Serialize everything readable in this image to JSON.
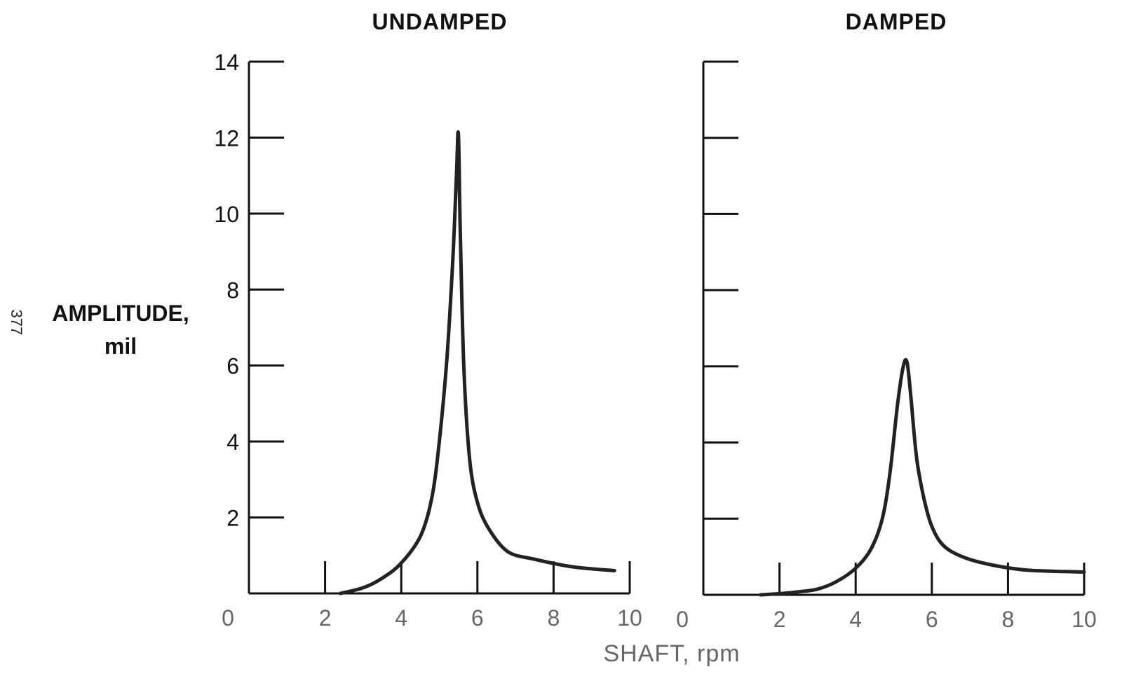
{
  "page_number": "377",
  "ylabel_lines": [
    "AMPLITUDE,",
    "mil"
  ],
  "xlabel": "SHAFT, rpm",
  "chart_data": [
    {
      "type": "line",
      "title": "UNDAMPED",
      "xlabel": "SHAFT, rpm",
      "ylabel": "AMPLITUDE, mil",
      "xlim": [
        0,
        10
      ],
      "ylim": [
        0,
        14
      ],
      "xticks": [
        0,
        2,
        4,
        6,
        8,
        10
      ],
      "yticks": [
        2,
        4,
        6,
        8,
        10,
        12,
        14
      ],
      "grid": false,
      "series": [
        {
          "x": [
            2.4,
            3.0,
            3.5,
            4.0,
            4.5,
            4.8,
            5.0,
            5.2,
            5.35,
            5.45,
            5.5,
            5.55,
            5.65,
            5.8,
            6.0,
            6.3,
            6.8,
            7.5,
            8.5,
            9.6
          ],
          "y": [
            0.0,
            0.15,
            0.4,
            0.8,
            1.5,
            2.5,
            4.0,
            6.2,
            8.7,
            11.0,
            12.1,
            9.5,
            5.8,
            3.5,
            2.4,
            1.7,
            1.1,
            0.9,
            0.7,
            0.6
          ]
        }
      ]
    },
    {
      "type": "line",
      "title": "DAMPED",
      "xlabel": "SHAFT, rpm",
      "ylabel": "AMPLITUDE, mil",
      "xlim": [
        0,
        10
      ],
      "ylim": [
        0,
        14
      ],
      "xticks": [
        0,
        2,
        4,
        6,
        8,
        10
      ],
      "yticks": [
        2,
        4,
        6,
        8,
        10,
        12,
        14
      ],
      "grid": false,
      "series": [
        {
          "x": [
            1.5,
            2.0,
            2.5,
            3.0,
            3.5,
            4.0,
            4.4,
            4.7,
            4.9,
            5.1,
            5.25,
            5.35,
            5.45,
            5.6,
            5.8,
            6.0,
            6.3,
            6.8,
            7.5,
            8.5,
            10.0
          ],
          "y": [
            0.0,
            0.03,
            0.08,
            0.15,
            0.35,
            0.7,
            1.2,
            2.0,
            3.2,
            5.0,
            6.0,
            6.1,
            5.2,
            3.6,
            2.5,
            1.8,
            1.3,
            1.0,
            0.8,
            0.65,
            0.6
          ]
        }
      ]
    }
  ]
}
